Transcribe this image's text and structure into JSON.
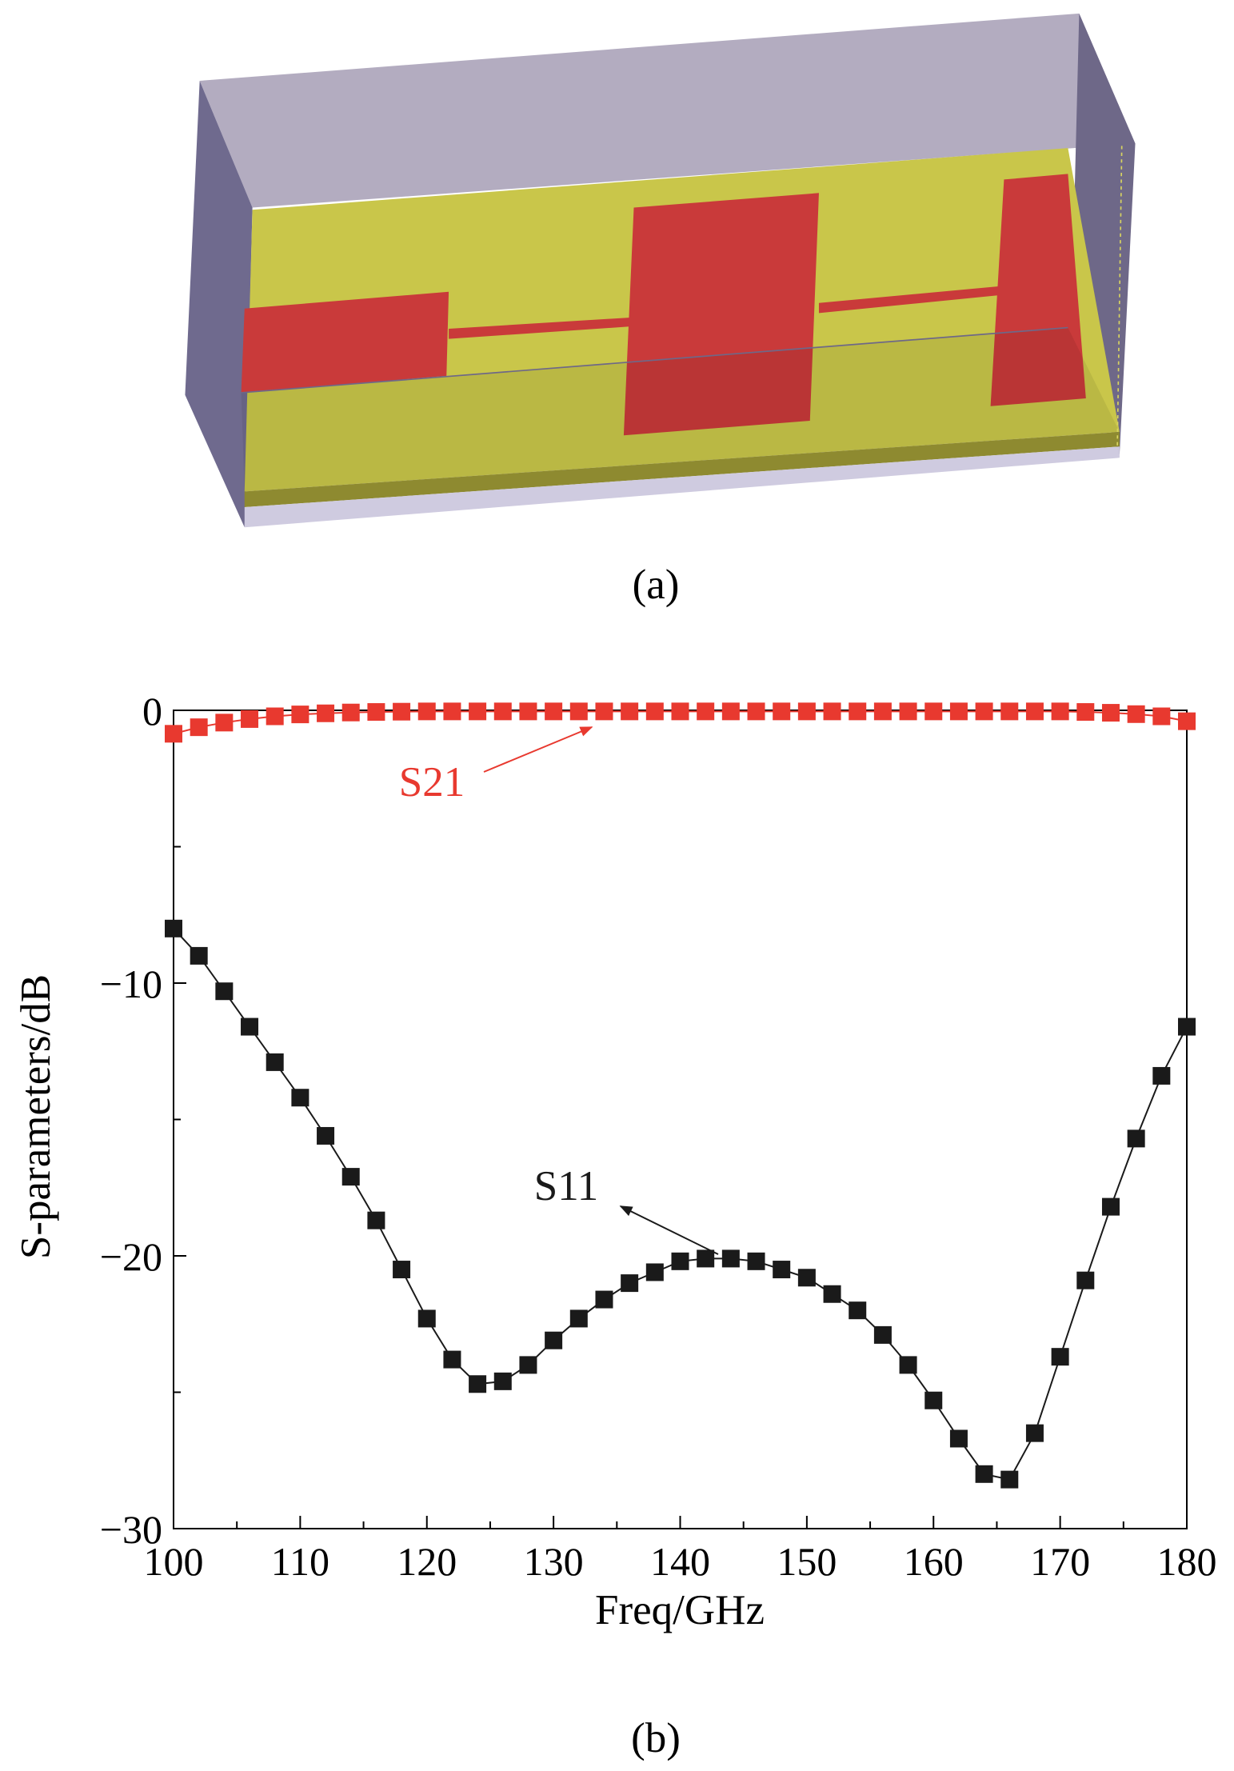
{
  "figure_a": {
    "caption": "(a)"
  },
  "chart_data": {
    "type": "line",
    "caption": "(b)",
    "x_label": "Freq/GHz",
    "y_label": "S-parameters/dB",
    "x": [
      100,
      102,
      104,
      106,
      108,
      110,
      112,
      114,
      116,
      118,
      120,
      122,
      124,
      126,
      128,
      130,
      132,
      134,
      136,
      138,
      140,
      142,
      144,
      146,
      148,
      150,
      152,
      154,
      156,
      158,
      160,
      162,
      164,
      166,
      168,
      170,
      172,
      174,
      176,
      178,
      180
    ],
    "series": [
      {
        "name": "S21",
        "color": "#e8392f",
        "values": [
          -0.86,
          -0.62,
          -0.45,
          -0.32,
          -0.22,
          -0.15,
          -0.11,
          -0.08,
          -0.06,
          -0.05,
          -0.04,
          -0.04,
          -0.04,
          -0.04,
          -0.04,
          -0.04,
          -0.04,
          -0.04,
          -0.04,
          -0.04,
          -0.04,
          -0.04,
          -0.04,
          -0.04,
          -0.04,
          -0.04,
          -0.04,
          -0.04,
          -0.04,
          -0.04,
          -0.04,
          -0.04,
          -0.04,
          -0.04,
          -0.04,
          -0.04,
          -0.06,
          -0.09,
          -0.14,
          -0.22,
          -0.4
        ]
      },
      {
        "name": "S11",
        "color": "#1a1a1a",
        "values": [
          -8.0,
          -9.0,
          -10.3,
          -11.6,
          -12.9,
          -14.2,
          -15.6,
          -17.1,
          -18.7,
          -20.5,
          -22.3,
          -23.8,
          -24.7,
          -24.6,
          -24.0,
          -23.1,
          -22.3,
          -21.6,
          -21.0,
          -20.6,
          -20.2,
          -20.1,
          -20.1,
          -20.2,
          -20.5,
          -20.8,
          -21.4,
          -22.0,
          -22.9,
          -24.0,
          -25.3,
          -26.7,
          -28.0,
          -28.2,
          -26.5,
          -23.7,
          -20.9,
          -18.2,
          -15.7,
          -13.4,
          -11.6
        ]
      }
    ],
    "xlim": [
      100,
      180
    ],
    "ylim": [
      -30,
      0
    ],
    "xticks": [
      100,
      110,
      120,
      130,
      140,
      150,
      160,
      170,
      180
    ],
    "yticks": [
      {
        "value": -30,
        "label": "−30"
      },
      {
        "value": -20,
        "label": "−20"
      },
      {
        "value": -10,
        "label": "−10"
      },
      0
    ],
    "xminorticks": [
      105,
      115,
      125,
      135,
      145,
      155,
      165,
      175
    ],
    "yminorticks": [
      -25,
      -15,
      -5
    ]
  }
}
